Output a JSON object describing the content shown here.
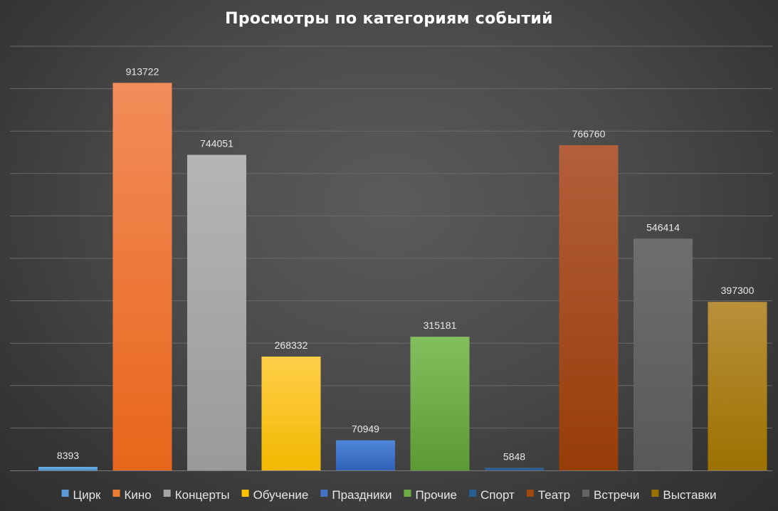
{
  "chart_data": {
    "type": "bar",
    "title": "Просмотры по категориям событий",
    "xlabel": "",
    "ylabel": "",
    "ylim": [
      0,
      1000000
    ],
    "grid": true,
    "legend_position": "bottom",
    "categories": [
      "Цирк",
      "Кино",
      "Концерты",
      "Обучение",
      "Праздники",
      "Прочие",
      "Спорт",
      "Театр",
      "Встречи",
      "Выставки"
    ],
    "series": [
      {
        "values": [
          8393,
          913722,
          744051,
          268332,
          70949,
          315181,
          5848,
          766760,
          546414,
          397300
        ],
        "colors": [
          [
            "#6fb0e6",
            "#4a90d0"
          ],
          [
            "#f28c5a",
            "#e8661a"
          ],
          [
            "#b5b5b5",
            "#9a9a9a"
          ],
          [
            "#ffcf4a",
            "#f2b800"
          ],
          [
            "#4f86d9",
            "#2f62b8"
          ],
          [
            "#84bf5e",
            "#5c9a34"
          ],
          [
            "#3a6ea8",
            "#244f85"
          ],
          [
            "#b45f3c",
            "#963d08"
          ],
          [
            "#6e6e6e",
            "#595959"
          ],
          [
            "#b8903a",
            "#9c7100"
          ]
        ],
        "legend_colors": [
          "#5b9bd5",
          "#ed7d31",
          "#a5a5a5",
          "#ffc000",
          "#4472c4",
          "#70ad47",
          "#255e91",
          "#9e480e",
          "#636363",
          "#997300"
        ]
      }
    ]
  }
}
